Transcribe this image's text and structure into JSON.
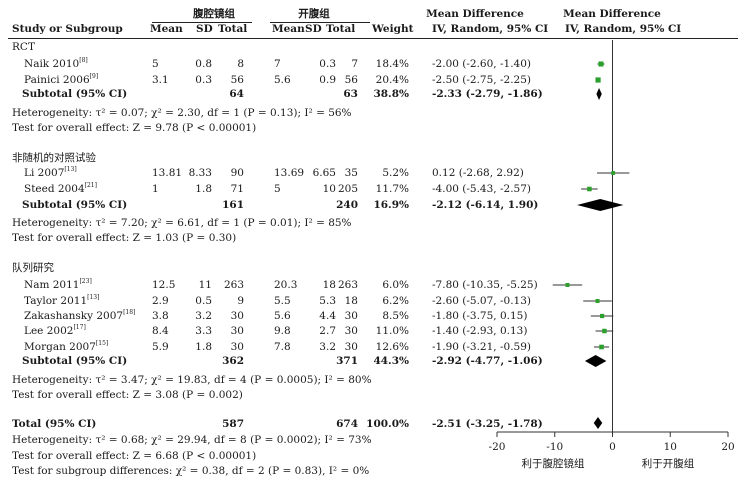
{
  "headers": {
    "study": "Study or Subgroup",
    "group1": "腹腔镜组",
    "group2": "开腹组",
    "mean": "Mean",
    "sd": "SD",
    "total": "Total",
    "weight": "Weight",
    "md": "Mean Difference",
    "md_sub_fixed": "IV, Random, 95% CI",
    "md_plot": "Mean Difference",
    "md_plot_sub": "IV, Random, 95% CI"
  },
  "subgroups": [
    {
      "name": "RCT",
      "studies": [
        {
          "study": "Naik 2010",
          "ref": "[8]",
          "m1": "5",
          "sd1": "0.8",
          "n1": "8",
          "m2": "7",
          "sd2": "0.3",
          "n2": "7",
          "weight": "18.4%",
          "ci": "-2.00 (-2.60, -1.40)",
          "md": -2.0,
          "lo": -2.6,
          "hi": -1.4,
          "w": 18.4
        },
        {
          "study": "Painici 2006",
          "ref": "[9]",
          "m1": "3.1",
          "sd1": "0.3",
          "n1": "56",
          "m2": "5.6",
          "sd2": "0.9",
          "n2": "56",
          "weight": "20.4%",
          "ci": "-2.50 (-2.75, -2.25)",
          "md": -2.5,
          "lo": -2.75,
          "hi": -2.25,
          "w": 20.4
        }
      ],
      "subtotal": {
        "label": "Subtotal (95% CI)",
        "n1": "64",
        "n2": "63",
        "weight": "38.8%",
        "ci": "-2.33 (-2.79, -1.86)",
        "md": -2.33,
        "lo": -2.79,
        "hi": -1.86
      },
      "heterogeneity": "Heterogeneity: τ² = 0.07; χ² = 2.30, df = 1 (P = 0.13); I² = 56%",
      "overall": "Test for overall effect: Z = 9.78 (P < 0.00001)"
    },
    {
      "name": "非随机的对照试验",
      "studies": [
        {
          "study": "Li 2007",
          "ref": "[13]",
          "m1": "13.81",
          "sd1": "8.33",
          "n1": "90",
          "m2": "13.69",
          "sd2": "6.65",
          "n2": "35",
          "weight": "5.2%",
          "ci": "0.12 (-2.68, 2.92)",
          "md": 0.12,
          "lo": -2.68,
          "hi": 2.92,
          "w": 5.2
        },
        {
          "study": "Steed 2004",
          "ref": "[21]",
          "m1": "1",
          "sd1": "1.8",
          "n1": "71",
          "m2": "5",
          "sd2": "10",
          "n2": "205",
          "weight": "11.7%",
          "ci": "-4.00 (-5.43, -2.57)",
          "md": -4.0,
          "lo": -5.43,
          "hi": -2.57,
          "w": 11.7
        }
      ],
      "subtotal": {
        "label": "Subtotal (95% CI)",
        "n1": "161",
        "n2": "240",
        "weight": "16.9%",
        "ci": "-2.12 (-6.14, 1.90)",
        "md": -2.12,
        "lo": -6.14,
        "hi": 1.9
      },
      "heterogeneity": "Heterogeneity: τ² = 7.20; χ² = 6.61, df = 1 (P = 0.01); I² = 85%",
      "overall": "Test for overall effect: Z = 1.03 (P = 0.30)"
    },
    {
      "name": "队列研究",
      "studies": [
        {
          "study": "Nam 2011",
          "ref": "[23]",
          "m1": "12.5",
          "sd1": "11",
          "n1": "263",
          "m2": "20.3",
          "sd2": "18",
          "n2": "263",
          "weight": "6.0%",
          "ci": "-7.80 (-10.35, -5.25)",
          "md": -7.8,
          "lo": -10.35,
          "hi": -5.25,
          "w": 6.0
        },
        {
          "study": "Taylor 2011",
          "ref": "[13]",
          "m1": "2.9",
          "sd1": "0.5",
          "n1": "9",
          "m2": "5.5",
          "sd2": "5.3",
          "n2": "18",
          "weight": "6.2%",
          "ci": "-2.60 (-5.07, -0.13)",
          "md": -2.6,
          "lo": -5.07,
          "hi": -0.13,
          "w": 6.2
        },
        {
          "study": "Zakashansky 2007",
          "ref": "[18]",
          "m1": "3.8",
          "sd1": "3.2",
          "n1": "30",
          "m2": "5.6",
          "sd2": "4.4",
          "n2": "30",
          "weight": "8.5%",
          "ci": "-1.80 (-3.75, 0.15)",
          "md": -1.8,
          "lo": -3.75,
          "hi": 0.15,
          "w": 8.5
        },
        {
          "study": "Lee 2002",
          "ref": "[17]",
          "m1": "8.4",
          "sd1": "3.3",
          "n1": "30",
          "m2": "9.8",
          "sd2": "2.7",
          "n2": "30",
          "weight": "11.0%",
          "ci": "-1.40 (-2.93, 0.13)",
          "md": -1.4,
          "lo": -2.93,
          "hi": 0.13,
          "w": 11.0
        },
        {
          "study": "Morgan 2007",
          "ref": "[15]",
          "m1": "5.9",
          "sd1": "1.8",
          "n1": "30",
          "m2": "7.8",
          "sd2": "3.2",
          "n2": "30",
          "weight": "12.6%",
          "ci": "-1.90 (-3.21, -0.59)",
          "md": -1.9,
          "lo": -3.21,
          "hi": -0.59,
          "w": 12.6
        }
      ],
      "subtotal": {
        "label": "Subtotal (95% CI)",
        "n1": "362",
        "n2": "371",
        "weight": "44.3%",
        "ci": "-2.92 (-4.77, -1.06)",
        "md": -2.92,
        "lo": -4.77,
        "hi": -1.06
      },
      "heterogeneity": "Heterogeneity: τ² = 3.47; χ² = 19.83, df = 4 (P = 0.0005); I² = 80%",
      "overall": "Test for overall effect: Z = 3.08 (P = 0.002)"
    }
  ],
  "total": {
    "label": "Total (95% CI)",
    "n1": "587",
    "n2": "674",
    "weight": "100.0%",
    "ci": "-2.51 (-3.25, -1.78)",
    "md": -2.51,
    "lo": -3.25,
    "hi": -1.78
  },
  "footer": {
    "heterogeneity": "Heterogeneity: τ² = 0.68; χ² = 29.94, df = 8 (P = 0.0002); I² = 73%",
    "overall": "Test for overall effect: Z = 6.68 (P < 0.00001)",
    "subgroup": "Test for subgroup differences: χ² = 0.38, df = 2 (P = 0.83), I² = 0%"
  },
  "chart_data": {
    "type": "forest",
    "xlim": [
      -20,
      20
    ],
    "ticks": [
      "-20",
      "-10",
      "0",
      "10",
      "20"
    ],
    "tick_values": [
      -20,
      -10,
      0,
      10,
      20
    ],
    "favours_left": "利于腹腔镜组",
    "favours_right": "利于开腹组",
    "study_color": "#2ca02c",
    "diamond_color": "#000000"
  }
}
